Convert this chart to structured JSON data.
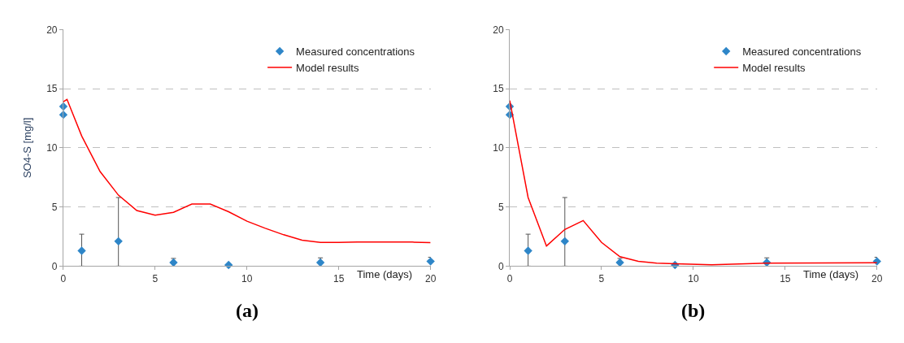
{
  "chart_data": [
    {
      "type": "scatter",
      "ylabel": "SO4-S [mg/l]",
      "xlabel": "Time (days)",
      "xlim": [
        0,
        20
      ],
      "xticks": [
        0,
        5,
        10,
        15,
        20
      ],
      "ylim": [
        0,
        20
      ],
      "yticks": [
        0,
        5,
        10,
        15,
        20
      ],
      "grid": "y",
      "legend": "top right",
      "annotations": [
        "(a)"
      ],
      "series": [
        {
          "name": "Measured concentrations",
          "marker": "diamond",
          "color": "#2e86c8",
          "x": [
            0,
            0,
            1,
            3,
            6,
            9,
            14,
            20
          ],
          "values": [
            13.5,
            12.8,
            1.3,
            2.1,
            0.3,
            0.1,
            0.3,
            0.4
          ],
          "errors": [
            null,
            null,
            [
              0,
              2.7
            ],
            [
              0,
              5.8
            ],
            [
              0.3,
              0.65
            ],
            null,
            [
              0.3,
              0.7
            ],
            [
              0.4,
              0.75
            ]
          ]
        },
        {
          "name": "Model results",
          "type": "line",
          "marker": "none",
          "color": "#ff0000",
          "x": [
            0,
            0.2,
            1,
            2,
            3,
            4,
            5,
            6,
            7,
            8,
            9,
            10,
            11,
            12,
            13,
            14,
            15,
            16,
            19,
            20
          ],
          "values": [
            13.9,
            14.1,
            11,
            8,
            6,
            4.7,
            4.3,
            4.55,
            5.25,
            5.25,
            4.6,
            3.8,
            3.2,
            2.65,
            2.2,
            2.0,
            2.0,
            2.03,
            2.03,
            1.98
          ]
        }
      ]
    },
    {
      "type": "scatter",
      "xlabel": "Time (days)",
      "xlim": [
        0,
        20
      ],
      "xticks": [
        0,
        5,
        10,
        15,
        20
      ],
      "ylim": [
        0,
        20
      ],
      "yticks": [
        0,
        5,
        10,
        15,
        20
      ],
      "grid": "y",
      "legend": "top right",
      "annotations": [
        "(b)"
      ],
      "series": [
        {
          "name": "Measured concentrations",
          "marker": "diamond",
          "color": "#2e86c8",
          "x": [
            0,
            0,
            1,
            3,
            6,
            9,
            14,
            20
          ],
          "values": [
            13.5,
            12.8,
            1.3,
            2.1,
            0.3,
            0.1,
            0.3,
            0.4
          ],
          "errors": [
            null,
            null,
            [
              0,
              2.7
            ],
            [
              0,
              5.8
            ],
            [
              0.3,
              0.65
            ],
            null,
            [
              0.3,
              0.7
            ],
            [
              0.4,
              0.75
            ]
          ]
        },
        {
          "name": "Model results",
          "type": "line",
          "marker": "none",
          "color": "#ff0000",
          "x": [
            0,
            1,
            2,
            3,
            4,
            5,
            6,
            7,
            8,
            9,
            11,
            14,
            20
          ],
          "values": [
            14.0,
            5.8,
            1.7,
            3.1,
            3.85,
            2.0,
            0.8,
            0.4,
            0.25,
            0.2,
            0.12,
            0.25,
            0.28
          ]
        }
      ]
    }
  ]
}
